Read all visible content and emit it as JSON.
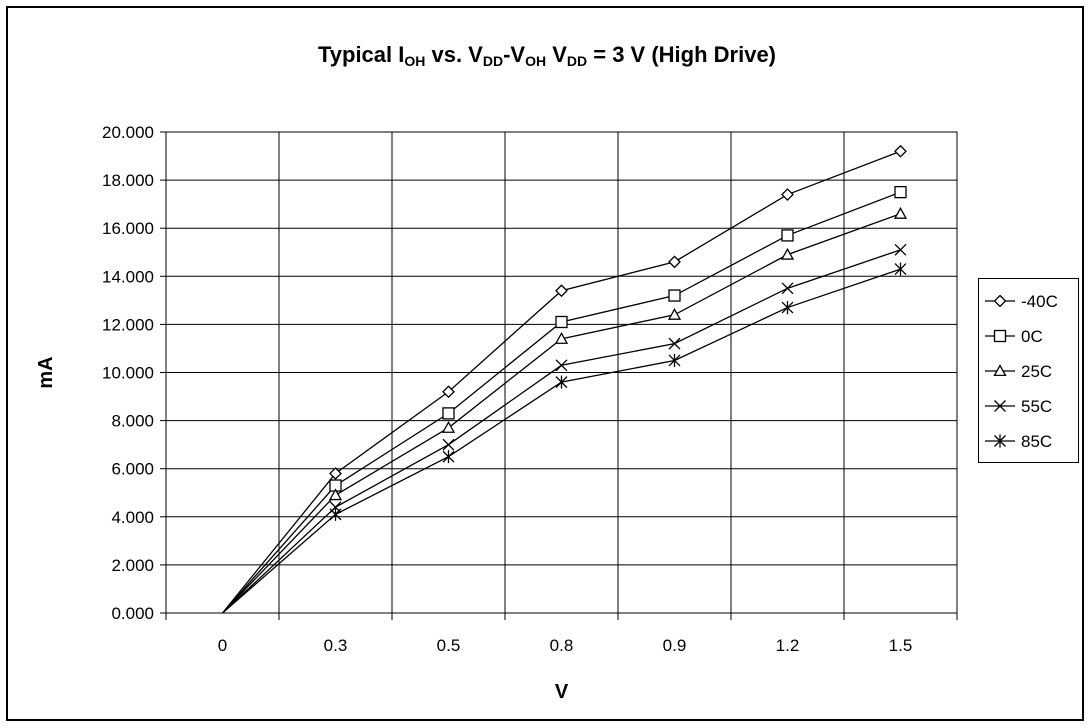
{
  "chart_data": {
    "type": "line",
    "title": {
      "parts": [
        {
          "text": "Typical I",
          "sub": false
        },
        {
          "text": "OH",
          "sub": true
        },
        {
          "text": " vs. V",
          "sub": false
        },
        {
          "text": "DD",
          "sub": true
        },
        {
          "text": "-V",
          "sub": false
        },
        {
          "text": "OH",
          "sub": true
        },
        {
          "text": " V",
          "sub": false
        },
        {
          "text": "DD",
          "sub": true
        },
        {
          "text": " = 3 V (High Drive)",
          "sub": false
        }
      ]
    },
    "xlabel": "V",
    "ylabel": "mA",
    "categories": [
      "0",
      "0.3",
      "0.5",
      "0.8",
      "0.9",
      "1.2",
      "1.5"
    ],
    "ylim": [
      0,
      20
    ],
    "yticks": [
      0,
      2,
      4,
      6,
      8,
      10,
      12,
      14,
      16,
      18,
      20
    ],
    "ytick_labels": [
      "0.000",
      "2.000",
      "4.000",
      "6.000",
      "8.000",
      "10.000",
      "12.000",
      "14.000",
      "16.000",
      "18.000",
      "20.000"
    ],
    "grid": true,
    "legend_position": "right",
    "series": [
      {
        "name": "-40C",
        "marker": "diamond",
        "values": [
          0,
          5.8,
          9.2,
          13.4,
          14.6,
          17.4,
          19.2
        ]
      },
      {
        "name": "0C",
        "marker": "square",
        "values": [
          0,
          5.3,
          8.3,
          12.1,
          13.2,
          15.7,
          17.5
        ]
      },
      {
        "name": "25C",
        "marker": "triangle",
        "values": [
          0,
          4.9,
          7.7,
          11.4,
          12.4,
          14.9,
          16.6
        ]
      },
      {
        "name": "55C",
        "marker": "x",
        "values": [
          0,
          4.4,
          7.0,
          10.3,
          11.2,
          13.5,
          15.1
        ]
      },
      {
        "name": "85C",
        "marker": "star",
        "values": [
          0,
          4.1,
          6.5,
          9.6,
          10.5,
          12.7,
          14.3
        ]
      }
    ],
    "colors": {
      "line": "#000000",
      "grid": "#000000",
      "background": "#ffffff"
    }
  }
}
